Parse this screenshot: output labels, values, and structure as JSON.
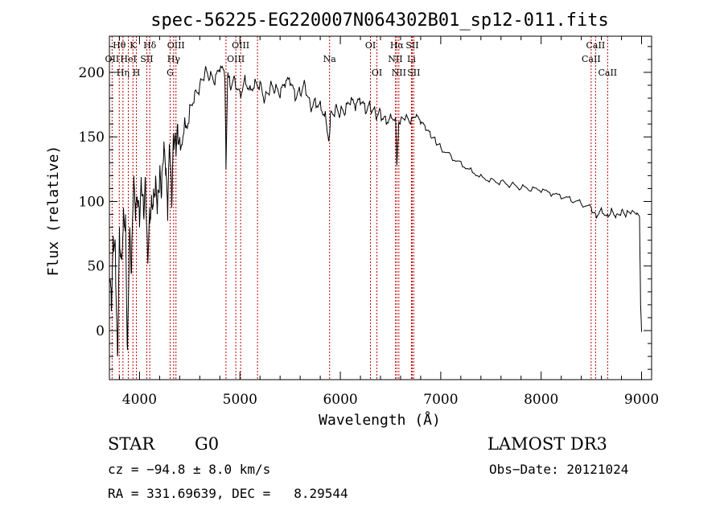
{
  "chart_data": {
    "type": "line",
    "title": "spec-56225-EG220007N064302B01_sp12-011.fits",
    "xlabel": "Wavelength (Å)",
    "ylabel": "Flux (relative)",
    "xlim": [
      3700,
      9100
    ],
    "ylim": [
      -38,
      228
    ],
    "xticks": [
      4000,
      5000,
      6000,
      7000,
      8000,
      9000
    ],
    "yticks": [
      0,
      50,
      100,
      150,
      200
    ],
    "series": [
      {
        "name": "spectrum",
        "x": [
          3700,
          3720,
          3740,
          3760,
          3780,
          3800,
          3820,
          3840,
          3860,
          3880,
          3900,
          3920,
          3940,
          3960,
          3980,
          4000,
          4020,
          4040,
          4060,
          4080,
          4100,
          4120,
          4140,
          4160,
          4180,
          4200,
          4220,
          4240,
          4260,
          4280,
          4300,
          4320,
          4340,
          4360,
          4380,
          4400,
          4450,
          4500,
          4550,
          4600,
          4650,
          4700,
          4750,
          4800,
          4850,
          4861,
          4880,
          4900,
          4950,
          5000,
          5050,
          5100,
          5150,
          5200,
          5250,
          5300,
          5350,
          5400,
          5450,
          5500,
          5550,
          5600,
          5650,
          5700,
          5750,
          5800,
          5850,
          5890,
          5900,
          5950,
          6000,
          6050,
          6100,
          6150,
          6200,
          6250,
          6300,
          6350,
          6400,
          6450,
          6500,
          6550,
          6563,
          6580,
          6600,
          6650,
          6700,
          6750,
          6800,
          6850,
          6900,
          6950,
          7000,
          7100,
          7200,
          7300,
          7400,
          7500,
          7600,
          7700,
          7800,
          7900,
          8000,
          8100,
          8200,
          8300,
          8400,
          8500,
          8542,
          8600,
          8662,
          8700,
          8750,
          8800,
          8850,
          8900,
          8950,
          8980,
          8990,
          9000
        ],
        "values": [
          40,
          15,
          70,
          60,
          -20,
          80,
          60,
          95,
          90,
          -15,
          75,
          45,
          110,
          85,
          95,
          80,
          110,
          90,
          115,
          60,
          95,
          105,
          110,
          120,
          100,
          120,
          105,
          135,
          120,
          85,
          140,
          95,
          150,
          145,
          160,
          150,
          165,
          175,
          185,
          190,
          200,
          195,
          190,
          200,
          195,
          125,
          200,
          190,
          195,
          185,
          198,
          190,
          195,
          193,
          180,
          188,
          185,
          180,
          188,
          190,
          178,
          183,
          190,
          175,
          180,
          178,
          170,
          150,
          168,
          172,
          168,
          168,
          175,
          170,
          175,
          168,
          172,
          168,
          170,
          166,
          168,
          165,
          128,
          160,
          163,
          165,
          160,
          165,
          160,
          155,
          150,
          146,
          142,
          136,
          131,
          126,
          121,
          118,
          116,
          113,
          110,
          108,
          107,
          104,
          102,
          100,
          98,
          95,
          90,
          95,
          90,
          95,
          90,
          93,
          90,
          92,
          90,
          88,
          20,
          -1
        ]
      }
    ],
    "lines": [
      {
        "label": "Hθ",
        "x": 3798,
        "row": 1
      },
      {
        "label": "OII",
        "x": 3727,
        "row": 2
      },
      {
        "label": "Hη",
        "x": 3835,
        "row": 3
      },
      {
        "label": "K",
        "x": 3934,
        "row": 1
      },
      {
        "label": "HeI",
        "x": 3889,
        "row": 2
      },
      {
        "label": "H",
        "x": 3969,
        "row": 3
      },
      {
        "label": "SII",
        "x": 4072,
        "row": 2
      },
      {
        "label": "Hδ",
        "x": 4102,
        "row": 1
      },
      {
        "label": "OIII",
        "x": 4363,
        "row": 1
      },
      {
        "label": "Hγ",
        "x": 4340,
        "row": 2
      },
      {
        "label": "G",
        "x": 4305,
        "row": 3
      },
      {
        "label": "OIII",
        "x": 5007,
        "row": 1
      },
      {
        "label": "OIII",
        "x": 4959,
        "row": 2
      },
      {
        "label": "Na",
        "x": 5893,
        "row": 2
      },
      {
        "label": "OI",
        "x": 6300,
        "row": 1
      },
      {
        "label": "OI",
        "x": 6364,
        "row": 3
      },
      {
        "label": "Hα",
        "x": 6563,
        "row": 1
      },
      {
        "label": "NII",
        "x": 6548,
        "row": 2
      },
      {
        "label": "NII",
        "x": 6583,
        "row": 3
      },
      {
        "label": "SII",
        "x": 6716,
        "row": 1
      },
      {
        "label": "Li",
        "x": 6708,
        "row": 2
      },
      {
        "label": "SII",
        "x": 6731,
        "row": 3
      },
      {
        "label": "CaII",
        "x": 8542,
        "row": 1
      },
      {
        "label": "CaII",
        "x": 8498,
        "row": 2
      },
      {
        "label": "CaII",
        "x": 8662,
        "row": 3
      }
    ],
    "extra_marker_lines": [
      4861,
      5175
    ],
    "grid": false,
    "legend": "none"
  },
  "info": {
    "class_label": "STAR",
    "subclass": "G0",
    "survey": "LAMOST DR3",
    "cz": "cz = −94.8 ± 8.0 km/s",
    "obs_date": "Obs−Date: 20121024",
    "coords": "RA = 331.69639, DEC =   8.29544"
  },
  "colors": {
    "spectrum": "#000000",
    "marker": "#c00000",
    "axes": "#000000",
    "background": "#ffffff"
  }
}
